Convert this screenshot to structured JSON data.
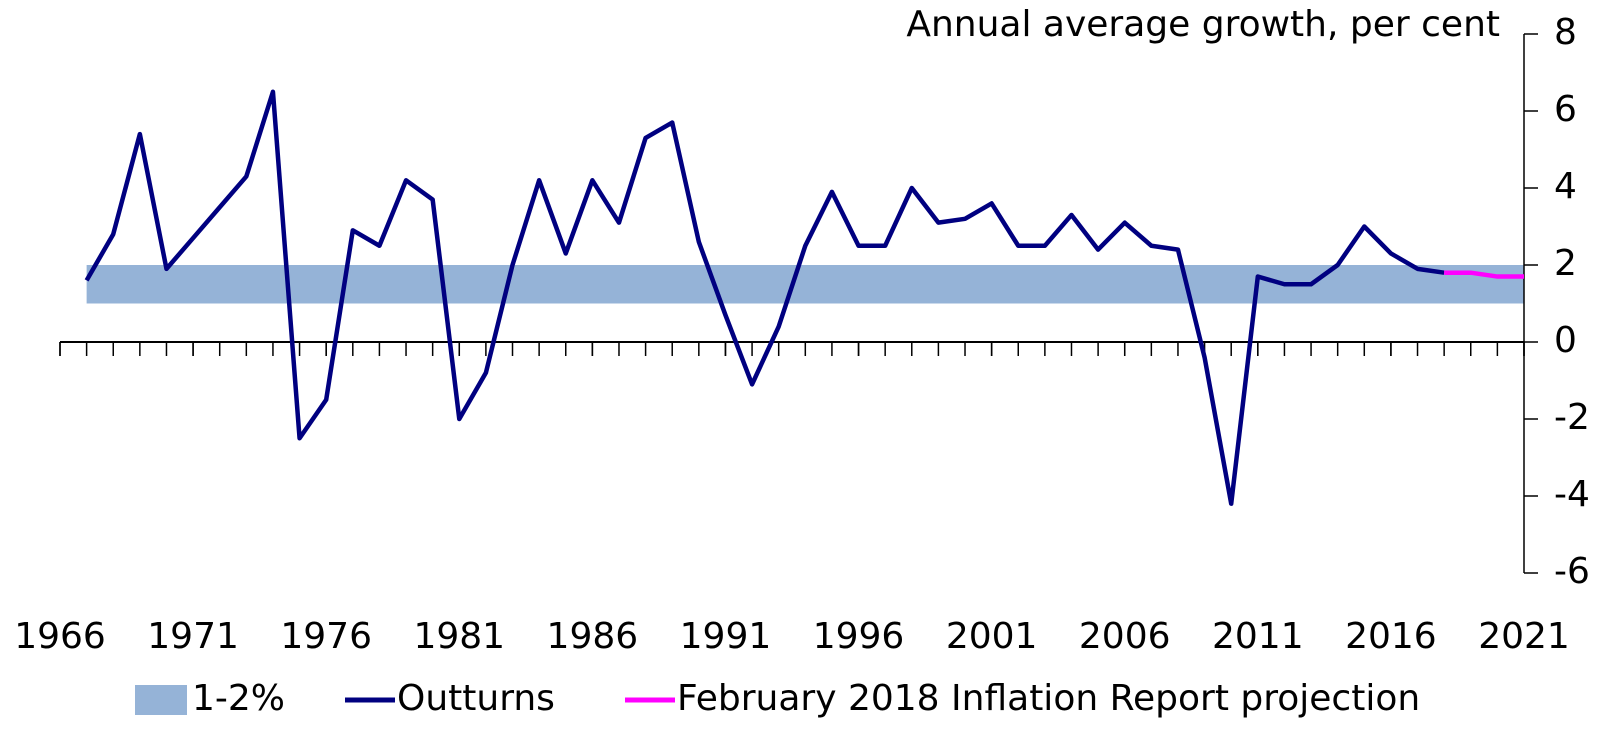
{
  "chart_data": {
    "type": "line",
    "y_axis_label": "Annual average growth, per cent",
    "xlim": [
      1966,
      2021
    ],
    "xticks": [
      1966,
      1971,
      1976,
      1981,
      1986,
      1991,
      1996,
      2001,
      2006,
      2011,
      2016,
      2021
    ],
    "ylim": [
      -6,
      8
    ],
    "yticks": [
      -6,
      -4,
      -2,
      0,
      2,
      4,
      6,
      8
    ],
    "band": {
      "name": "1-2%",
      "color": "#95b3d7",
      "x": [
        1967,
        2021
      ],
      "values": [
        1,
        2
      ]
    },
    "series": [
      {
        "name": "Outturns",
        "color": "#000080",
        "x": [
          1967,
          1968,
          1969,
          1970,
          1971,
          1972,
          1973,
          1974,
          1975,
          1976,
          1977,
          1978,
          1979,
          1980,
          1981,
          1982,
          1983,
          1984,
          1985,
          1986,
          1987,
          1988,
          1989,
          1990,
          1991,
          1992,
          1993,
          1994,
          1995,
          1996,
          1997,
          1998,
          1999,
          2000,
          2001,
          2002,
          2003,
          2004,
          2005,
          2006,
          2007,
          2008,
          2009,
          2010,
          2011,
          2012,
          2013,
          2014,
          2015,
          2016,
          2017,
          2018
        ],
        "values": [
          1.6,
          2.8,
          5.4,
          1.9,
          2.7,
          3.5,
          4.3,
          6.5,
          -2.5,
          -1.5,
          2.9,
          2.5,
          4.2,
          3.7,
          -2.0,
          -0.8,
          2.0,
          4.2,
          2.3,
          4.2,
          3.1,
          5.3,
          5.7,
          2.6,
          0.7,
          -1.1,
          0.4,
          2.5,
          3.9,
          2.5,
          2.5,
          4.0,
          3.1,
          3.2,
          3.6,
          2.5,
          2.5,
          3.3,
          2.4,
          3.1,
          2.5,
          2.4,
          -0.4,
          -4.2,
          1.7,
          1.5,
          1.5,
          2.0,
          3.0,
          2.3,
          1.9,
          1.8
        ]
      },
      {
        "name": "February 2018 Inflation Report projection",
        "color": "#ff00ff",
        "x": [
          2018,
          2019,
          2020,
          2021
        ],
        "values": [
          1.8,
          1.8,
          1.7,
          1.7
        ]
      }
    ]
  }
}
